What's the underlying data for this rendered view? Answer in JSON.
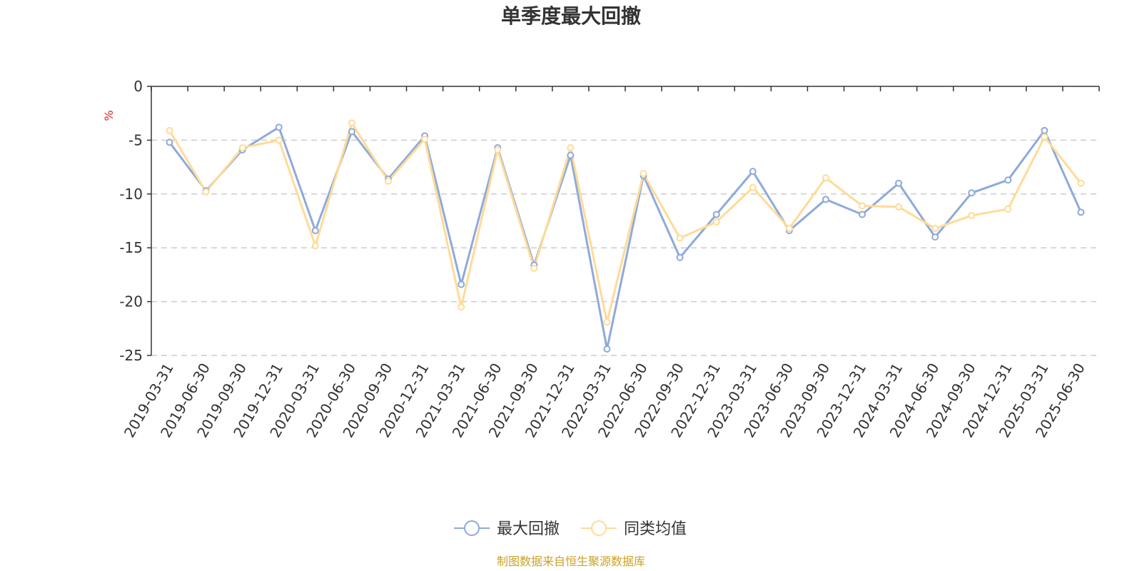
{
  "chart_data": {
    "type": "line",
    "title": "单季度最大回撤",
    "ylabel": "%",
    "xlabel": "",
    "ylim": [
      -25,
      0
    ],
    "yticks": [
      0,
      -5,
      -10,
      -15,
      -20,
      -25
    ],
    "grid": true,
    "legend_position": "bottom",
    "categories": [
      "2019-03-31",
      "2019-06-30",
      "2019-09-30",
      "2019-12-31",
      "2020-03-31",
      "2020-06-30",
      "2020-09-30",
      "2020-12-31",
      "2021-03-31",
      "2021-06-30",
      "2021-09-30",
      "2021-12-31",
      "2022-03-31",
      "2022-06-30",
      "2022-09-30",
      "2022-12-31",
      "2023-03-31",
      "2023-06-30",
      "2023-09-30",
      "2023-12-31",
      "2024-03-31",
      "2024-06-30",
      "2024-09-30",
      "2024-12-31",
      "2025-03-31",
      "2025-06-30"
    ],
    "series": [
      {
        "name": "最大回撤",
        "color": "#8eaadb",
        "values": [
          -5.2,
          -9.7,
          -5.9,
          -3.8,
          -13.4,
          -4.2,
          -8.6,
          -4.6,
          -18.4,
          -5.7,
          -16.6,
          -6.4,
          -24.4,
          -8.3,
          -15.9,
          -11.9,
          -7.9,
          -13.4,
          -10.5,
          -11.9,
          -9.0,
          -14.0,
          -9.9,
          -8.7,
          -4.1,
          -11.7
        ]
      },
      {
        "name": "同类均值",
        "color": "#ffdb97",
        "values": [
          -4.1,
          -9.8,
          -5.7,
          -5.0,
          -14.8,
          -3.4,
          -8.8,
          -4.9,
          -20.5,
          -5.9,
          -16.9,
          -5.7,
          -21.9,
          -8.1,
          -14.1,
          -12.6,
          -9.4,
          -13.2,
          -8.5,
          -11.1,
          -11.2,
          -13.2,
          -12.0,
          -11.4,
          -4.7,
          -9.0
        ]
      }
    ],
    "source": "制图数据来自恒生聚源数据库",
    "source_color": "#c9a227",
    "unit_color": "#e02020"
  }
}
